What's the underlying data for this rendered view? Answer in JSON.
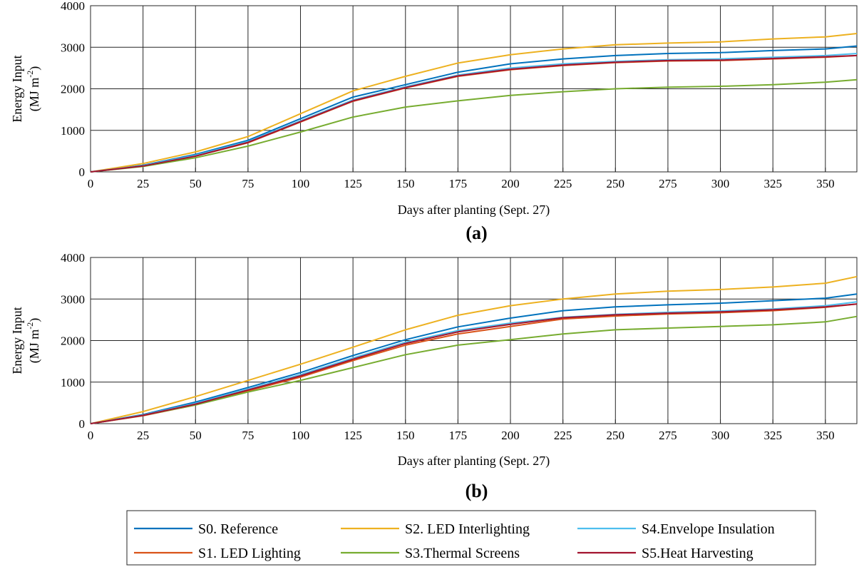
{
  "chart_data": [
    {
      "type": "line",
      "panel_label": "(a)",
      "xlabel": "Days after planting (Sept. 27)",
      "ylabel": "Energy Input",
      "ylabel_units": "(MJ m",
      "ylabel_exp": "-2",
      "ylabel_close": ")",
      "xlim": [
        0,
        365
      ],
      "ylim": [
        0,
        4000
      ],
      "xticks": [
        0,
        25,
        50,
        75,
        100,
        125,
        150,
        175,
        200,
        225,
        250,
        275,
        300,
        325,
        350
      ],
      "yticks": [
        0,
        1000,
        2000,
        3000,
        4000
      ],
      "grid": true,
      "x": [
        0,
        25,
        50,
        75,
        100,
        125,
        150,
        175,
        200,
        225,
        250,
        275,
        300,
        325,
        350,
        365
      ],
      "series": [
        {
          "name": "S0. Reference",
          "color": "#0072BD",
          "values": [
            0,
            160,
            420,
            760,
            1280,
            1800,
            2100,
            2400,
            2600,
            2720,
            2800,
            2850,
            2870,
            2920,
            2960,
            3030
          ]
        },
        {
          "name": "S1. LED Lighting",
          "color": "#D95319",
          "values": [
            0,
            140,
            380,
            700,
            1200,
            1700,
            2020,
            2300,
            2460,
            2560,
            2630,
            2670,
            2680,
            2720,
            2760,
            2800
          ]
        },
        {
          "name": "S2. LED Interlighting",
          "color": "#EDB120",
          "values": [
            0,
            200,
            480,
            850,
            1400,
            1950,
            2300,
            2620,
            2820,
            2960,
            3060,
            3100,
            3130,
            3200,
            3250,
            3330
          ]
        },
        {
          "name": "S3.Thermal Screens",
          "color": "#77AC30",
          "values": [
            0,
            130,
            340,
            620,
            960,
            1320,
            1560,
            1710,
            1840,
            1930,
            2000,
            2040,
            2060,
            2100,
            2160,
            2220
          ]
        },
        {
          "name": "S4.Envelope Insulation",
          "color": "#4DBEEE",
          "values": [
            0,
            150,
            400,
            730,
            1230,
            1730,
            2050,
            2330,
            2500,
            2600,
            2660,
            2700,
            2720,
            2760,
            2800,
            2850
          ]
        },
        {
          "name": "S5.Heat Harvesting",
          "color": "#A2142F",
          "values": [
            0,
            140,
            380,
            710,
            1210,
            1710,
            2030,
            2310,
            2470,
            2570,
            2640,
            2680,
            2690,
            2730,
            2770,
            2800
          ]
        }
      ]
    },
    {
      "type": "line",
      "panel_label": "(b)",
      "xlabel": "Days after planting (Sept. 27)",
      "ylabel": "Energy Input",
      "ylabel_units": "(MJ m",
      "ylabel_exp": "-2",
      "ylabel_close": ")",
      "xlim": [
        0,
        365
      ],
      "ylim": [
        0,
        4000
      ],
      "xticks": [
        0,
        25,
        50,
        75,
        100,
        125,
        150,
        175,
        200,
        225,
        250,
        275,
        300,
        325,
        350
      ],
      "yticks": [
        0,
        1000,
        2000,
        3000,
        4000
      ],
      "grid": true,
      "x": [
        0,
        25,
        50,
        75,
        100,
        125,
        150,
        175,
        200,
        225,
        250,
        275,
        300,
        325,
        350,
        365
      ],
      "series": [
        {
          "name": "S0. Reference",
          "color": "#0072BD",
          "values": [
            0,
            220,
            520,
            870,
            1230,
            1640,
            2020,
            2330,
            2540,
            2720,
            2810,
            2860,
            2900,
            2960,
            3020,
            3120
          ]
        },
        {
          "name": "S1. LED Lighting",
          "color": "#D95319",
          "values": [
            0,
            190,
            450,
            790,
            1120,
            1520,
            1890,
            2160,
            2340,
            2520,
            2590,
            2640,
            2670,
            2720,
            2800,
            2880
          ]
        },
        {
          "name": "S2. LED Interlighting",
          "color": "#EDB120",
          "values": [
            0,
            290,
            650,
            1040,
            1430,
            1840,
            2260,
            2610,
            2840,
            3000,
            3120,
            3190,
            3230,
            3290,
            3380,
            3540
          ]
        },
        {
          "name": "S3.Thermal Screens",
          "color": "#77AC30",
          "values": [
            0,
            200,
            450,
            760,
            1040,
            1350,
            1660,
            1890,
            2020,
            2160,
            2260,
            2300,
            2340,
            2380,
            2450,
            2580
          ]
        },
        {
          "name": "S4.Envelope Insulation",
          "color": "#4DBEEE",
          "values": [
            0,
            210,
            490,
            830,
            1180,
            1580,
            1960,
            2240,
            2420,
            2560,
            2630,
            2680,
            2710,
            2760,
            2840,
            2930
          ]
        },
        {
          "name": "S5.Heat Harvesting",
          "color": "#A2142F",
          "values": [
            0,
            200,
            470,
            810,
            1150,
            1550,
            1930,
            2210,
            2390,
            2550,
            2620,
            2660,
            2690,
            2740,
            2810,
            2880
          ]
        }
      ]
    }
  ],
  "legend": {
    "placement": "bottom",
    "items": [
      {
        "label": "S0. Reference",
        "color": "#0072BD"
      },
      {
        "label": "S2. LED Interlighting",
        "color": "#EDB120"
      },
      {
        "label": "S4.Envelope Insulation",
        "color": "#4DBEEE"
      },
      {
        "label": "S1. LED Lighting",
        "color": "#D95319"
      },
      {
        "label": "S3.Thermal Screens",
        "color": "#77AC30"
      },
      {
        "label": "S5.Heat Harvesting",
        "color": "#A2142F"
      }
    ]
  }
}
